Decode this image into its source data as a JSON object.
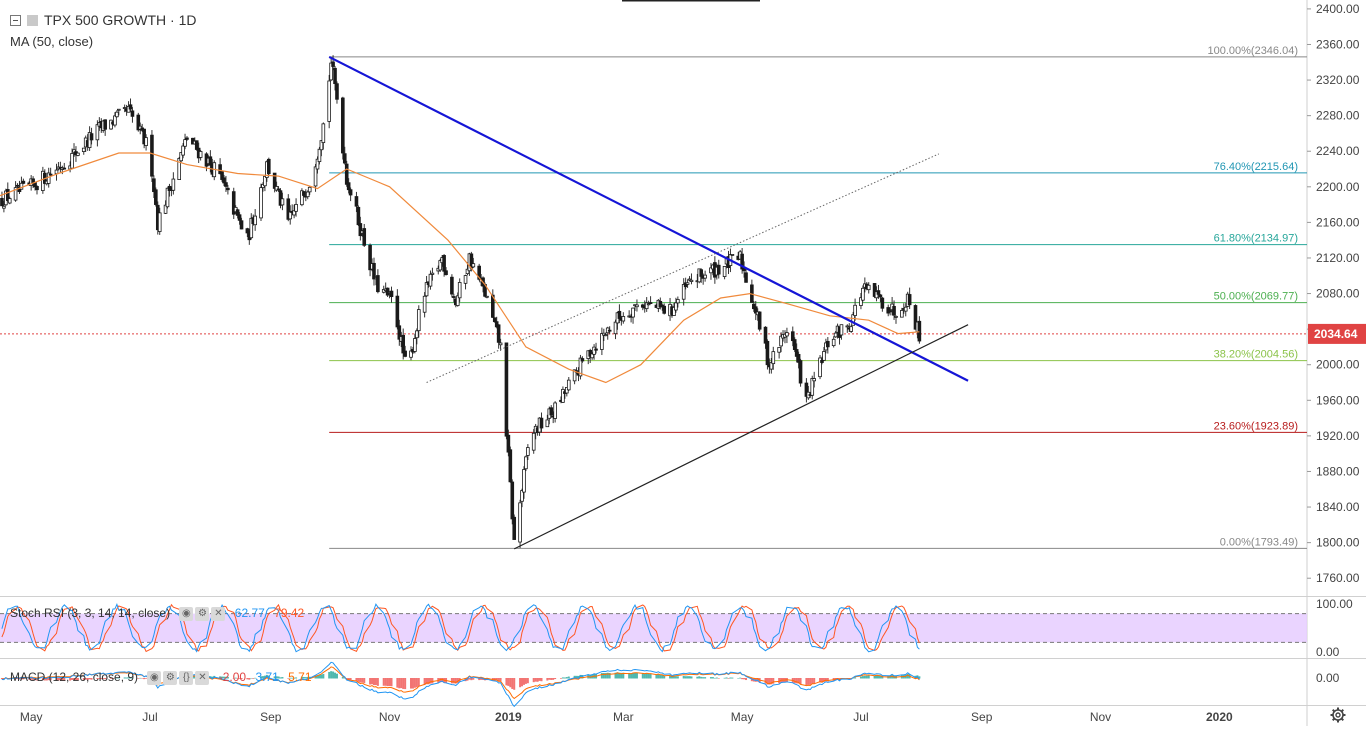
{
  "header": {
    "symbol_title": "TPX 500 GROWTH · 1D",
    "ma_label": "MA (50, close)",
    "collapse_icon": "minus-square-icon"
  },
  "price_axis": {
    "labels": [
      "2400.00",
      "2360.00",
      "2320.00",
      "2280.00",
      "2240.00",
      "2200.00",
      "2160.00",
      "2120.00",
      "2080.00",
      "2040.00",
      "2000.00",
      "1960.00",
      "1920.00",
      "1880.00",
      "1840.00",
      "1800.00",
      "1760.00"
    ],
    "last_price": "2034.64",
    "last_price_color": "#e04343"
  },
  "stoch_rsi": {
    "label": "Stoch RSI (3, 3, 14, 14, close)",
    "value_k": "62.77",
    "value_d": "79.42",
    "axis_labels": [
      "100.00",
      "0.00"
    ],
    "k_color": "#2196f3",
    "d_color": "#ff5722",
    "band_color": "#e6ccff"
  },
  "macd": {
    "label": "MACD (12, 26, close, 9)",
    "value_hist": "-2.00",
    "value_macd": "3.71",
    "value_signal": "5.71",
    "axis_label": "0.00",
    "macd_color": "#2196f3",
    "signal_color": "#ff6d00"
  },
  "time_axis": {
    "labels": [
      "May",
      "Jul",
      "Sep",
      "Nov",
      "2019",
      "Mar",
      "May",
      "Jul",
      "Sep",
      "Nov",
      "2020"
    ]
  },
  "settings_icon": "gear-icon",
  "chart_data": {
    "type": "candlestick",
    "title": "TPX 500 GROWTH · 1D",
    "ylim": [
      1740,
      2410
    ],
    "x_range": [
      "2018-04-15",
      "2020-02-15"
    ],
    "fib_levels": [
      {
        "ratio": "100.00%",
        "value": 2346.04,
        "label": "100.00%(2346.04)",
        "color": "#888888"
      },
      {
        "ratio": "76.40%",
        "value": 2215.64,
        "label": "76.40%(2215.64)",
        "color": "#2196b3"
      },
      {
        "ratio": "61.80%",
        "value": 2134.97,
        "label": "61.80%(2134.97)",
        "color": "#26a69a"
      },
      {
        "ratio": "50.00%",
        "value": 2069.77,
        "label": "50.00%(2069.77)",
        "color": "#4caf50"
      },
      {
        "ratio": "38.20%",
        "value": 2004.56,
        "label": "38.20%(2004.56)",
        "color": "#8bc34a"
      },
      {
        "ratio": "23.60%",
        "value": 1923.89,
        "label": "23.60%(1923.89)",
        "color": "#b71c1c"
      },
      {
        "ratio": "0.00%",
        "value": 1793.49,
        "label": "0.00%(1793.49)",
        "color": "#888888"
      }
    ],
    "price_keypoints": [
      [
        "2018-04-15",
        2185
      ],
      [
        "2018-05-01",
        2200
      ],
      [
        "2018-05-20",
        2230
      ],
      [
        "2018-06-05",
        2265
      ],
      [
        "2018-06-20",
        2285
      ],
      [
        "2018-07-01",
        2240
      ],
      [
        "2018-07-05",
        2160
      ],
      [
        "2018-07-20",
        2255
      ],
      [
        "2018-08-05",
        2215
      ],
      [
        "2018-08-20",
        2140
      ],
      [
        "2018-08-30",
        2225
      ],
      [
        "2018-09-10",
        2160
      ],
      [
        "2018-09-22",
        2210
      ],
      [
        "2018-09-28",
        2270
      ],
      [
        "2018-10-02",
        2340
      ],
      [
        "2018-10-05",
        2300
      ],
      [
        "2018-10-10",
        2210
      ],
      [
        "2018-10-25",
        2090
      ],
      [
        "2018-11-03",
        2070
      ],
      [
        "2018-11-10",
        1990
      ],
      [
        "2018-11-18",
        2075
      ],
      [
        "2018-11-28",
        2120
      ],
      [
        "2018-12-05",
        2070
      ],
      [
        "2018-12-12",
        2120
      ],
      [
        "2018-12-20",
        2080
      ],
      [
        "2018-12-28",
        2020
      ],
      [
        "2019-01-04",
        1800
      ],
      [
        "2019-01-12",
        1920
      ],
      [
        "2019-01-25",
        1950
      ],
      [
        "2019-02-10",
        2010
      ],
      [
        "2019-02-25",
        2050
      ],
      [
        "2019-03-10",
        2070
      ],
      [
        "2019-03-25",
        2060
      ],
      [
        "2019-04-05",
        2095
      ],
      [
        "2019-04-20",
        2110
      ],
      [
        "2019-04-30",
        2120
      ],
      [
        "2019-05-08",
        2060
      ],
      [
        "2019-05-15",
        2000
      ],
      [
        "2019-05-25",
        2045
      ],
      [
        "2019-06-03",
        1958
      ],
      [
        "2019-06-15",
        2030
      ],
      [
        "2019-06-25",
        2045
      ],
      [
        "2019-07-02",
        2085
      ],
      [
        "2019-07-10",
        2075
      ],
      [
        "2019-07-18",
        2060
      ],
      [
        "2019-07-25",
        2075
      ],
      [
        "2019-07-31",
        2034.64
      ]
    ],
    "ma_keypoints": [
      [
        "2018-04-15",
        2190
      ],
      [
        "2018-05-15",
        2215
      ],
      [
        "2018-06-15",
        2238
      ],
      [
        "2018-07-01",
        2238
      ],
      [
        "2018-07-20",
        2225
      ],
      [
        "2018-08-15",
        2215
      ],
      [
        "2018-09-05",
        2212
      ],
      [
        "2018-09-25",
        2198
      ],
      [
        "2018-10-10",
        2220
      ],
      [
        "2018-11-01",
        2200
      ],
      [
        "2018-12-01",
        2140
      ],
      [
        "2018-12-20",
        2090
      ],
      [
        "2019-01-10",
        2020
      ],
      [
        "2019-02-01",
        1995
      ],
      [
        "2019-02-20",
        1980
      ],
      [
        "2019-03-10",
        2000
      ],
      [
        "2019-04-01",
        2050
      ],
      [
        "2019-04-20",
        2075
      ],
      [
        "2019-05-05",
        2080
      ],
      [
        "2019-05-25",
        2068
      ],
      [
        "2019-06-15",
        2055
      ],
      [
        "2019-07-05",
        2050
      ],
      [
        "2019-07-20",
        2035
      ],
      [
        "2019-07-31",
        2037
      ]
    ],
    "trendlines": [
      {
        "name": "downtrend",
        "from": [
          "2018-10-01",
          2346
        ],
        "to": [
          "2019-08-25",
          1982
        ],
        "color": "#1515d6",
        "width": 2.2
      },
      {
        "name": "uptrend",
        "from": [
          "2019-01-04",
          1793
        ],
        "to": [
          "2019-08-25",
          2045
        ],
        "color": "#222222",
        "width": 1.2
      },
      {
        "name": "channel",
        "from": [
          "2018-11-20",
          1980
        ],
        "to": [
          "2019-08-10",
          2237
        ],
        "color": "#666666",
        "width": 1,
        "dashed": true
      }
    ]
  }
}
